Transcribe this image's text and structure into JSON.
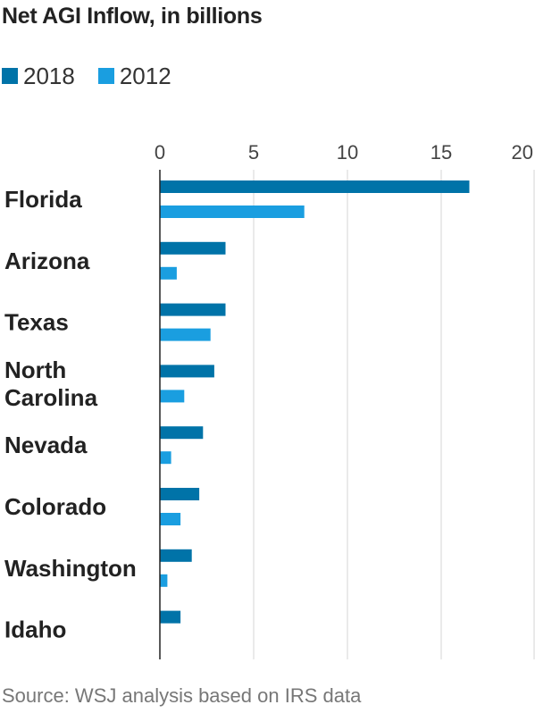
{
  "title": "Net AGI Inflow, in billions",
  "source": "Source: WSJ analysis based on IRS data",
  "colors": {
    "2018": "#0073a8",
    "2012": "#1a9ee0",
    "grid": "#d6d6d6",
    "axis": "#222222"
  },
  "legend": [
    {
      "label": "2018"
    },
    {
      "label": "2012"
    }
  ],
  "chart_data": {
    "type": "bar",
    "orientation": "horizontal",
    "title": "Net AGI Inflow, in billions",
    "categories": [
      "Florida",
      "Arizona",
      "Texas",
      "North Carolina",
      "Nevada",
      "Colorado",
      "Washington",
      "Idaho"
    ],
    "category_lines": [
      [
        "Florida"
      ],
      [
        "Arizona"
      ],
      [
        "Texas"
      ],
      [
        "North",
        "Carolina"
      ],
      [
        "Nevada"
      ],
      [
        "Colorado"
      ],
      [
        "Washington"
      ],
      [
        "Idaho"
      ]
    ],
    "series": [
      {
        "name": "2018",
        "values": [
          16.5,
          3.5,
          3.5,
          2.9,
          2.3,
          2.1,
          1.7,
          1.1
        ]
      },
      {
        "name": "2012",
        "values": [
          7.7,
          0.9,
          2.7,
          1.3,
          0.6,
          1.1,
          0.4,
          null
        ]
      }
    ],
    "xlim": [
      0,
      20
    ],
    "xticks": [
      0,
      5,
      10,
      15,
      20
    ],
    "tick_labels_position": "top",
    "grid": true,
    "legend_position": "top-left"
  }
}
